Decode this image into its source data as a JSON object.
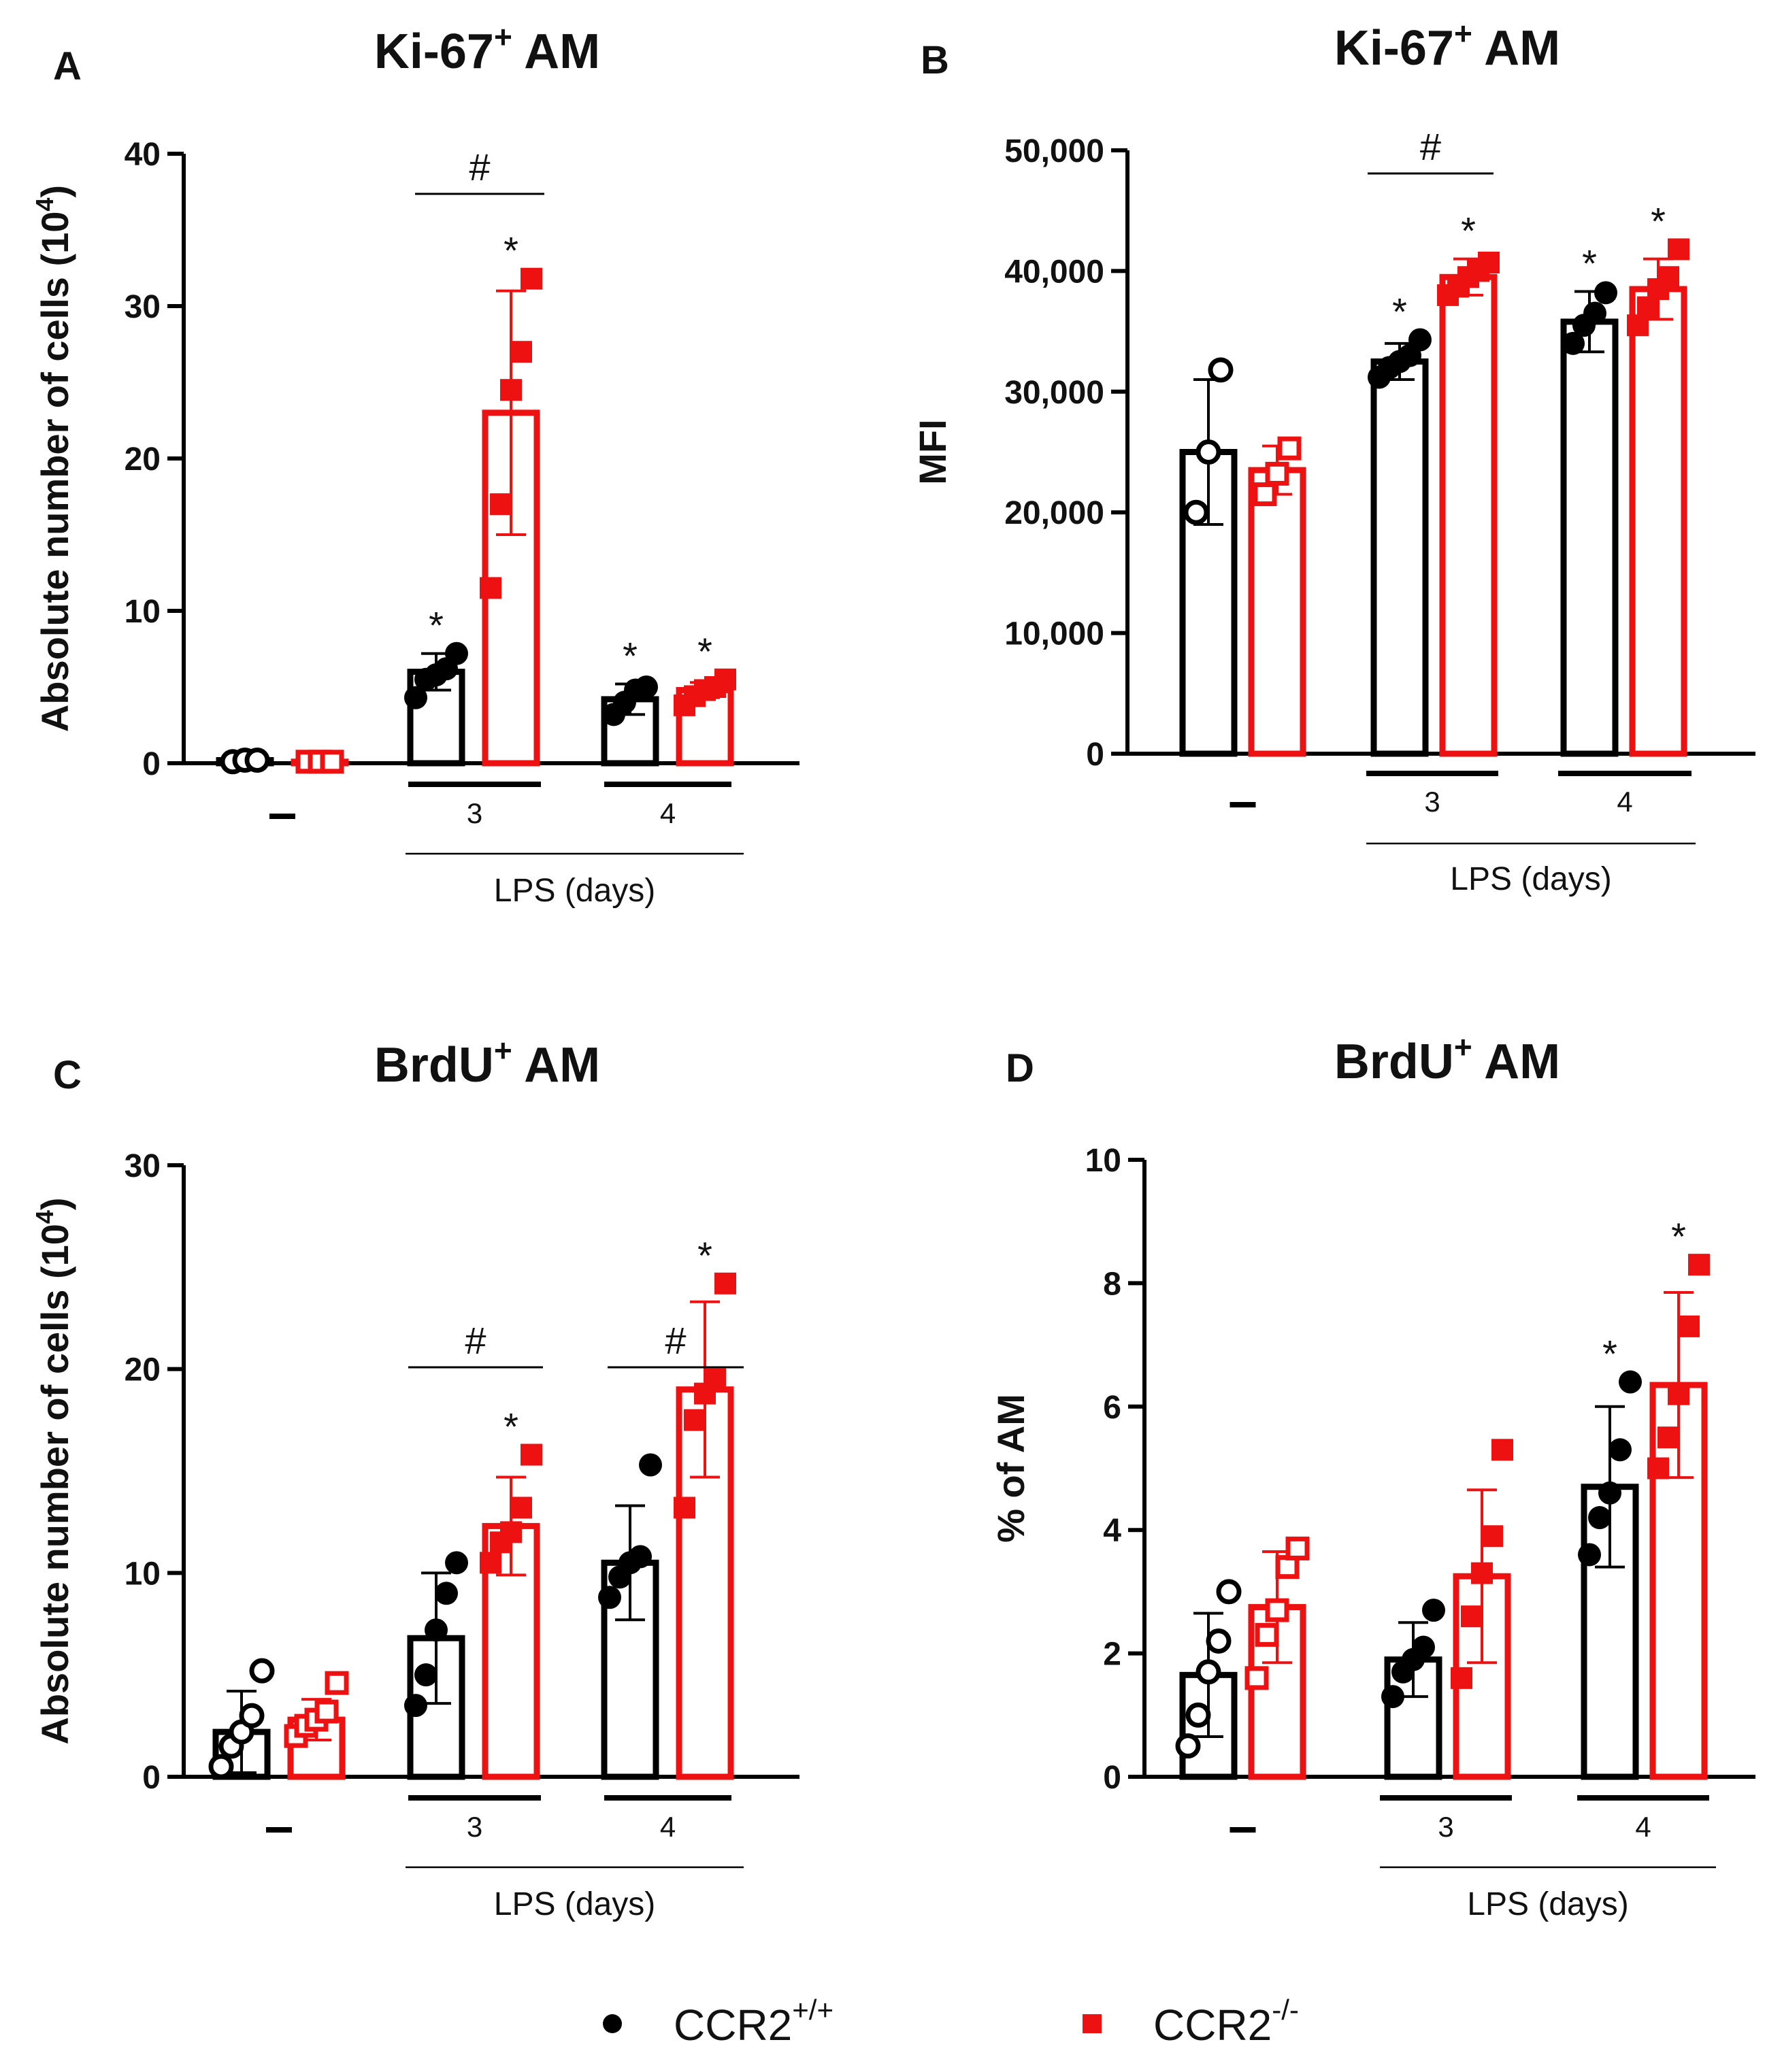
{
  "colors": {
    "wt": "#000000",
    "ko": "#ee1111"
  },
  "legend": [
    {
      "label": "CCR2",
      "sup": "+/+",
      "marker": "circle",
      "color": "#000000"
    },
    {
      "label": "CCR2",
      "sup": "-/-",
      "marker": "square",
      "color": "#ee1111"
    }
  ],
  "chart_data": [
    {
      "panel": "A",
      "type": "bar",
      "title": "Ki-67",
      "title_sup": "+",
      "title_suffix": "AM",
      "ylabel": "Absolute number of cells (10",
      "ylabel_sup": "4",
      "ylabel_suffix": ")",
      "xlabel": "LPS (days)",
      "ylim": [
        0,
        40
      ],
      "yticks": [
        "0",
        "10",
        "20",
        "30",
        "40"
      ],
      "categories": [
        "–",
        "3",
        "4"
      ],
      "lps_label_from": 1,
      "series": [
        {
          "name": "CCR2+/+",
          "values": [
            0.2,
            6.0,
            4.2
          ],
          "sd": [
            0.1,
            1.2,
            1.0
          ],
          "points": [
            [
              0.1,
              0.2,
              0.2
            ],
            [
              4.3,
              5.5,
              5.8,
              6.2,
              7.2
            ],
            [
              3.2,
              4.0,
              4.8,
              5.0
            ]
          ],
          "open": [
            true,
            false,
            false
          ],
          "sig": [
            "",
            "*",
            "*"
          ]
        },
        {
          "name": "CCR2-/-",
          "values": [
            0.1,
            23.0,
            4.8
          ],
          "sd": [
            0.1,
            8.0,
            0.5
          ],
          "points": [
            [
              0.1,
              0.1,
              0.1
            ],
            [
              11.5,
              17.0,
              24.5,
              27.0,
              31.8
            ],
            [
              3.8,
              4.4,
              4.8,
              5.0,
              5.5
            ]
          ],
          "open": [
            true,
            false,
            false
          ],
          "sig": [
            "",
            "*",
            "*"
          ]
        }
      ],
      "hash": [
        {
          "group": 1,
          "label": "#"
        }
      ]
    },
    {
      "panel": "B",
      "type": "bar",
      "title": "Ki-67",
      "title_sup": "+",
      "title_suffix": "AM",
      "ylabel": "MFI",
      "ylabel_sup": "",
      "ylabel_suffix": "",
      "xlabel": "LPS (days)",
      "ylim": [
        0,
        50000
      ],
      "yticks": [
        "0",
        "10,000",
        "20,000",
        "30,000",
        "40,000",
        "50,000"
      ],
      "categories": [
        "–",
        "3",
        "4"
      ],
      "lps_label_from": 1,
      "series": [
        {
          "name": "CCR2+/+",
          "values": [
            25000,
            32500,
            35800
          ],
          "sd": [
            6000,
            1500,
            2500
          ],
          "points": [
            [
              20000,
              25000,
              31800
            ],
            [
              31200,
              32000,
              32500,
              33000,
              34300
            ],
            [
              34000,
              35500,
              36500,
              38200
            ]
          ],
          "open": [
            true,
            false,
            false
          ],
          "sig": [
            "",
            "*",
            "*"
          ]
        },
        {
          "name": "CCR2-/-",
          "values": [
            23500,
            39500,
            38500
          ],
          "sd": [
            2000,
            1500,
            2500
          ],
          "points": [
            [
              21500,
              23200,
              25300
            ],
            [
              38000,
              38700,
              39500,
              40000,
              40700
            ],
            [
              35500,
              37000,
              38500,
              39500,
              41800
            ]
          ],
          "open": [
            true,
            false,
            false
          ],
          "sig": [
            "",
            "*",
            "*"
          ]
        }
      ],
      "hash": [
        {
          "group": 1,
          "label": "#"
        }
      ]
    },
    {
      "panel": "C",
      "type": "bar",
      "title": "BrdU",
      "title_sup": "+",
      "title_suffix": "AM",
      "ylabel": "Absolute number of cells (10",
      "ylabel_sup": "4",
      "ylabel_suffix": ")",
      "xlabel": "LPS (days)",
      "ylim": [
        0,
        30
      ],
      "yticks": [
        "0",
        "10",
        "20",
        "30"
      ],
      "categories": [
        "–",
        "3",
        "4"
      ],
      "lps_label_from": 1,
      "series": [
        {
          "name": "CCR2+/+",
          "values": [
            2.2,
            6.8,
            10.5
          ],
          "sd": [
            2.0,
            3.2,
            2.8
          ],
          "points": [
            [
              0.5,
              1.5,
              2.2,
              3.0,
              5.2
            ],
            [
              3.5,
              5.0,
              7.2,
              9.0,
              10.5
            ],
            [
              8.8,
              9.8,
              10.5,
              10.8,
              15.3
            ]
          ],
          "open": [
            true,
            false,
            false
          ],
          "sig": [
            "",
            "",
            ""
          ]
        },
        {
          "name": "CCR2-/-",
          "values": [
            2.8,
            12.3,
            19.0
          ],
          "sd": [
            1.0,
            2.4,
            4.3
          ],
          "points": [
            [
              2.0,
              2.5,
              2.8,
              3.2,
              4.6
            ],
            [
              10.5,
              11.5,
              12.0,
              13.2,
              15.8
            ],
            [
              13.2,
              17.5,
              18.8,
              19.5,
              24.2
            ]
          ],
          "open": [
            true,
            false,
            false
          ],
          "sig": [
            "",
            "*",
            "*"
          ]
        }
      ],
      "hash": [
        {
          "group": 1,
          "label": "#"
        },
        {
          "group": 2,
          "label": "#"
        }
      ]
    },
    {
      "panel": "D",
      "type": "bar",
      "title": "BrdU",
      "title_sup": "+",
      "title_suffix": "AM",
      "ylabel": "% of AM",
      "ylabel_sup": "",
      "ylabel_suffix": "",
      "xlabel": "LPS (days)",
      "ylim": [
        0,
        10
      ],
      "yticks": [
        "0",
        "2",
        "4",
        "6",
        "8",
        "10"
      ],
      "categories": [
        "–",
        "3",
        "4"
      ],
      "lps_label_from": 1,
      "series": [
        {
          "name": "CCR2+/+",
          "values": [
            1.65,
            1.9,
            4.7
          ],
          "sd": [
            1.0,
            0.6,
            1.3
          ],
          "points": [
            [
              0.5,
              1.0,
              1.7,
              2.2,
              3.0
            ],
            [
              1.3,
              1.7,
              1.9,
              2.1,
              2.7
            ],
            [
              3.6,
              4.2,
              4.6,
              5.3,
              6.4
            ]
          ],
          "open": [
            true,
            false,
            false
          ],
          "sig": [
            "",
            "",
            "*"
          ]
        },
        {
          "name": "CCR2-/-",
          "values": [
            2.75,
            3.25,
            6.35
          ],
          "sd": [
            0.9,
            1.4,
            1.5
          ],
          "points": [
            [
              1.6,
              2.3,
              2.7,
              3.4,
              3.7
            ],
            [
              1.6,
              2.6,
              3.3,
              3.9,
              5.3
            ],
            [
              5.0,
              5.5,
              6.2,
              7.3,
              8.3
            ]
          ],
          "open": [
            true,
            false,
            false
          ],
          "sig": [
            "",
            "",
            "*"
          ]
        }
      ],
      "hash": []
    }
  ]
}
